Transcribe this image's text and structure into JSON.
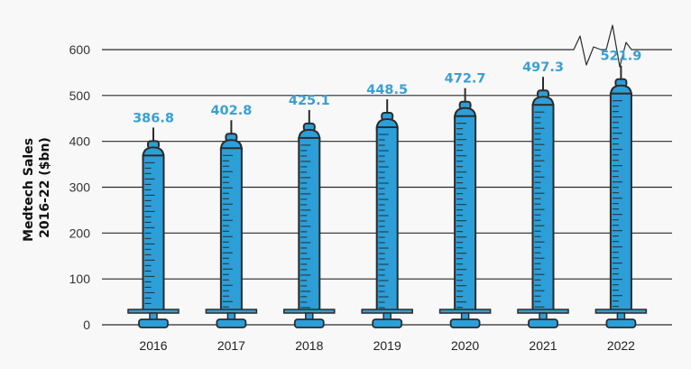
{
  "chart_data": {
    "type": "bar",
    "categories": [
      "2016",
      "2017",
      "2018",
      "2019",
      "2020",
      "2021",
      "2022"
    ],
    "values": [
      386.8,
      402.8,
      425.1,
      448.5,
      472.7,
      497.3,
      521.9
    ],
    "data_labels": [
      "386.8",
      "402.8",
      "425.1",
      "448.5",
      "472.7",
      "497.3",
      "521.9"
    ],
    "ylabel_lines": [
      "Medtech Sales",
      "2016-22 ($bn)"
    ],
    "yticks": [
      0,
      100,
      200,
      300,
      400,
      500,
      600
    ],
    "ylim": [
      0,
      600
    ],
    "grid": true,
    "colors": {
      "barrel": "#2c9fd8",
      "outline": "#2b2b2b",
      "label": "#3aa0d2",
      "grid": "#2a2a2a"
    }
  }
}
